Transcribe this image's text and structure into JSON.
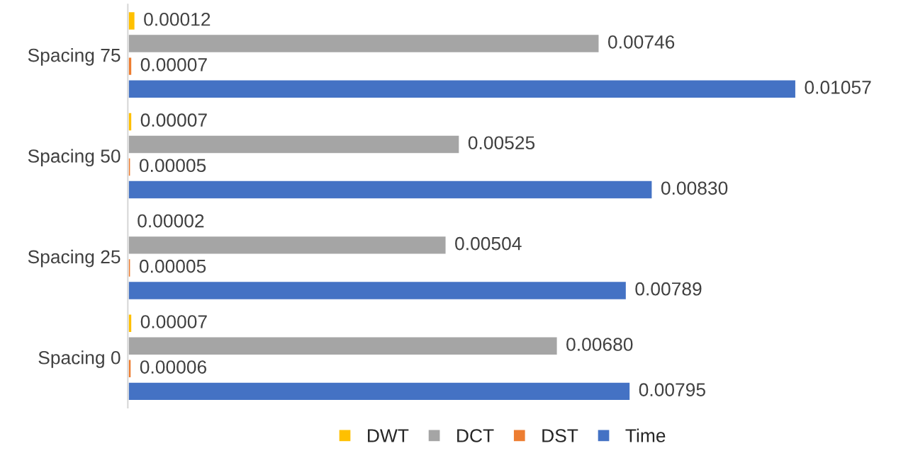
{
  "chart_data": {
    "type": "bar",
    "orientation": "horizontal",
    "categories": [
      "Spacing 75",
      "Spacing 50",
      "Spacing 25",
      "Spacing 0"
    ],
    "series": [
      {
        "name": "DWT",
        "color": "#ffc000",
        "values": [
          0.00012,
          7e-05,
          2e-05,
          7e-05
        ],
        "value_labels": [
          "0.00012",
          "0.00007",
          "0.00002",
          "0.00007"
        ]
      },
      {
        "name": "DCT",
        "color": "#a5a5a5",
        "values": [
          0.00746,
          0.00525,
          0.00504,
          0.0068
        ],
        "value_labels": [
          "0.00746",
          "0.00525",
          "0.00504",
          "0.00680"
        ]
      },
      {
        "name": "DST",
        "color": "#ed7d31",
        "values": [
          7e-05,
          5e-05,
          5e-05,
          6e-05
        ],
        "value_labels": [
          "0.00007",
          "0.00005",
          "0.00005",
          "0.00006"
        ]
      },
      {
        "name": "Time",
        "color": "#4472c4",
        "values": [
          0.01057,
          0.0083,
          0.00789,
          0.00795
        ],
        "value_labels": [
          "0.01057",
          "0.00830",
          "0.00789",
          "0.00795"
        ]
      }
    ],
    "legend": "bottom",
    "grid": false
  }
}
